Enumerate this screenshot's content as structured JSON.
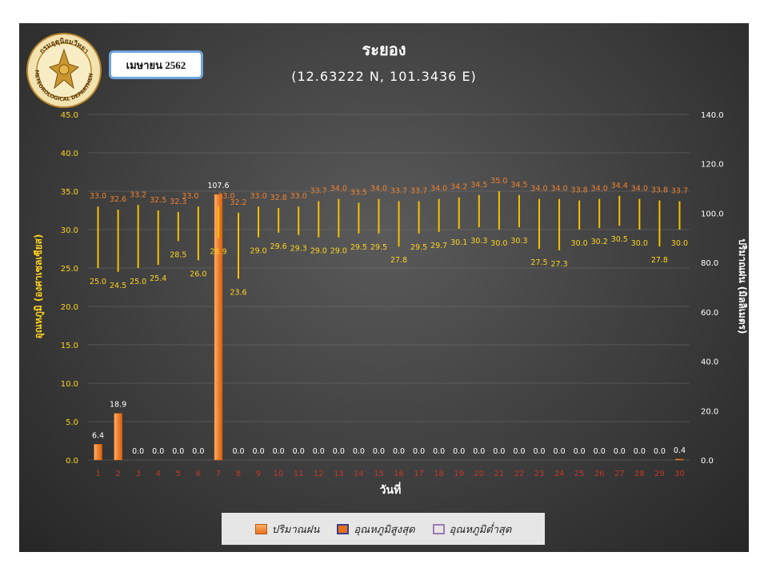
{
  "header": {
    "title": "ระยอง",
    "subtitle": "(12.63222 N, 101.3436 E)",
    "month_label": "เมษายน 2562"
  },
  "logo": {
    "icon": "meteorological-department-seal-icon",
    "text_top": "กรมอุตุนิยมวิทยา",
    "text_bottom": "METEOROLOGICAL DEPARTMENT"
  },
  "legend": {
    "rain": "ปริมาณฝน",
    "tmax": "อุณหภูมิสูงสุด",
    "tmin": "อุณหภูมิต่ำสุด"
  },
  "colors": {
    "rain": "#f0812e",
    "temp_bar": "#f5c000",
    "max_label": "#f0812e",
    "min_label": "#ffd21f",
    "left_axis": "#ffd21f",
    "right_axis": "#ffffff",
    "xtick": "#c0392b",
    "tmin_swatch": "#9b7bb5"
  },
  "chart_data": {
    "type": "bar",
    "xlabel": "วันที่",
    "ylabel_left": "อุณหภูมิ (องศาเซลเซียส)",
    "ylabel_right": "ปริมาณฝน (มิลลิเมตร)",
    "ylim_left": [
      0,
      45
    ],
    "ylim_right": [
      0,
      140
    ],
    "yticks_left": [
      "0.0",
      "5.0",
      "10.0",
      "15.0",
      "20.0",
      "25.0",
      "30.0",
      "35.0",
      "40.0",
      "45.0"
    ],
    "yticks_right": [
      "0.0",
      "20.0",
      "40.0",
      "60.0",
      "80.0",
      "100.0",
      "120.0",
      "140.0"
    ],
    "grid": true,
    "categories": [
      "1",
      "2",
      "3",
      "4",
      "5",
      "6",
      "7",
      "8",
      "9",
      "10",
      "11",
      "12",
      "13",
      "14",
      "15",
      "16",
      "17",
      "18",
      "19",
      "20",
      "21",
      "22",
      "23",
      "24",
      "25",
      "26",
      "27",
      "28",
      "29",
      "30"
    ],
    "series": [
      {
        "name": "ปริมาณฝน",
        "axis": "right",
        "values": [
          6.4,
          18.9,
          0.0,
          0.0,
          0.0,
          0.0,
          107.6,
          0.0,
          0.0,
          0.0,
          0.0,
          0.0,
          0.0,
          0.0,
          0.0,
          0.0,
          0.0,
          0.0,
          0.0,
          0.0,
          0.0,
          0.0,
          0.0,
          0.0,
          0.0,
          0.0,
          0.0,
          0.0,
          0.0,
          0.4
        ],
        "labels": [
          "6.4",
          "18.9",
          "0.0",
          "0.0",
          "0.0",
          "0.0",
          "107.6",
          "0.0",
          "0.0",
          "0.0",
          "0.0",
          "0.0",
          "0.0",
          "0.0",
          "0.0",
          "0.0",
          "0.0",
          "0.0",
          "0.0",
          "0.0",
          "0.0",
          "0.0",
          "0.0",
          "0.0",
          "0.0",
          "0.0",
          "0.0",
          "0.0",
          "0.0",
          "0.4"
        ]
      },
      {
        "name": "อุณหภูมิสูงสุด",
        "axis": "left",
        "values": [
          33.0,
          32.6,
          33.2,
          32.5,
          32.3,
          33.0,
          33.0,
          32.2,
          33.0,
          32.8,
          33.0,
          33.7,
          34.0,
          33.5,
          34.0,
          33.7,
          33.7,
          34.0,
          34.2,
          34.5,
          35.0,
          34.5,
          34.0,
          34.0,
          33.8,
          34.0,
          34.4,
          34.0,
          33.8,
          33.7
        ],
        "labels": [
          "33.0",
          "32.6",
          "33.2",
          "32.5",
          "32.3",
          "33.0",
          "33.0",
          "32.2",
          "33.0",
          "32.8",
          "33.0",
          "33.7",
          "34.0",
          "33.5",
          "34.0",
          "33.7",
          "33.7",
          "34.0",
          "34.2",
          "34.5",
          "35.0",
          "34.5",
          "34.0",
          "34.0",
          "33.8",
          "34.0",
          "34.4",
          "34.0",
          "33.8",
          "33.7"
        ]
      },
      {
        "name": "อุณหภูมิต่ำสุด",
        "axis": "left",
        "values": [
          25.0,
          24.5,
          25.0,
          25.4,
          28.5,
          26.0,
          28.9,
          23.6,
          29.0,
          29.6,
          29.3,
          29.0,
          29.0,
          29.5,
          29.5,
          27.8,
          29.5,
          29.7,
          30.1,
          30.3,
          30.0,
          30.3,
          27.5,
          27.3,
          30.0,
          30.2,
          30.5,
          30.0,
          27.8,
          30.0
        ],
        "labels": [
          "25.0",
          "24.5",
          "25.0",
          "25.4",
          "28.5",
          "26.0",
          "28.9",
          "23.6",
          "29.0",
          "29.6",
          "29.3",
          "29.0",
          "29.0",
          "29.5",
          "29.5",
          "27.8",
          "29.5",
          "29.7",
          "30.1",
          "30.3",
          "30.0",
          "30.3",
          "27.5",
          "27.3",
          "30.0",
          "30.2",
          "30.5",
          "30.0",
          "27.8",
          "30.0"
        ]
      }
    ]
  }
}
